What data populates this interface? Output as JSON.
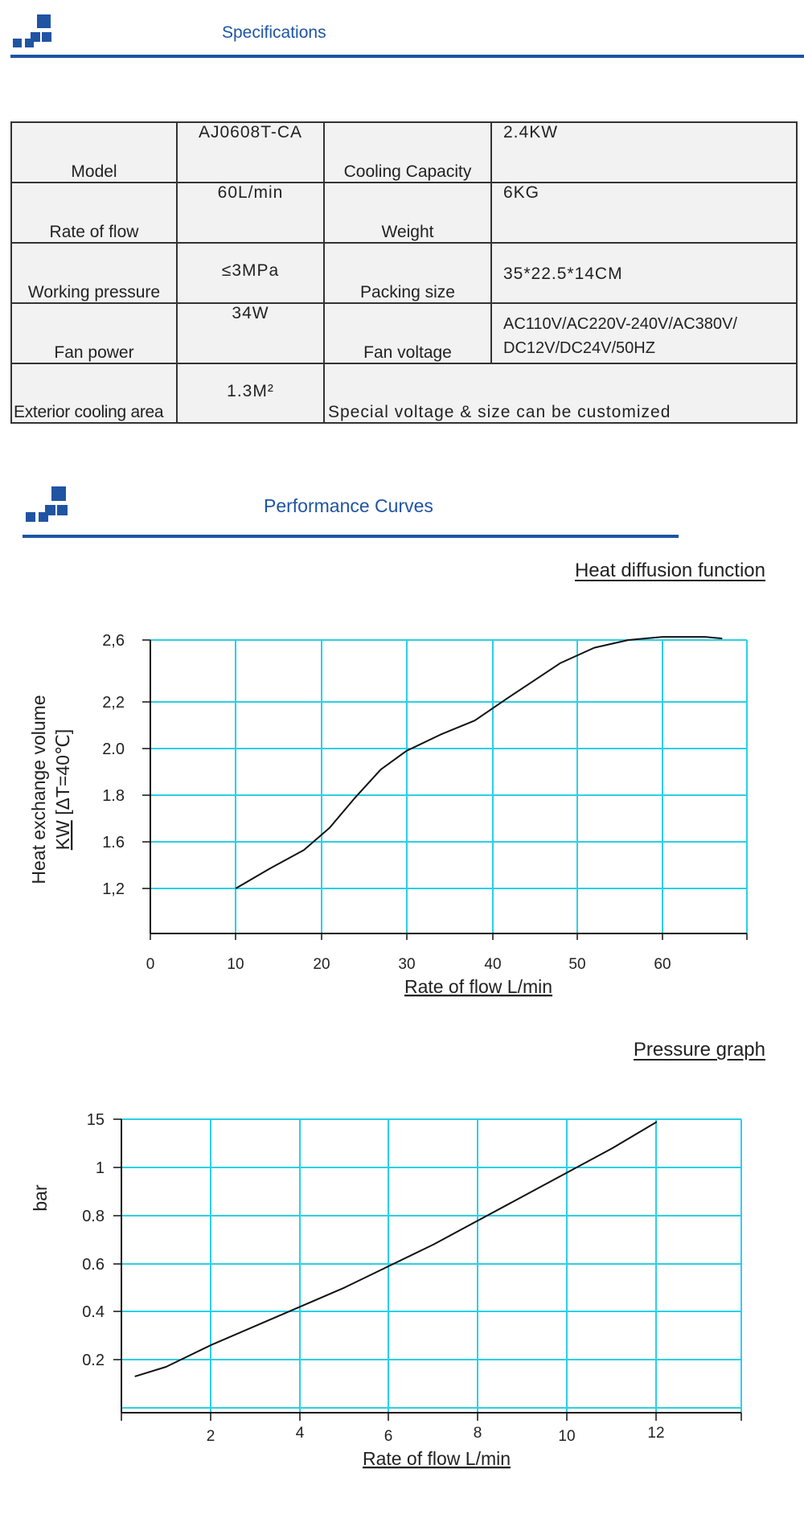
{
  "specifications_header": {
    "title": "Specifications"
  },
  "specifications": {
    "rows": [
      [
        {
          "label": "Model",
          "value": "AJ0608T-CA"
        },
        {
          "label": "Cooling Capacity",
          "value": "2.4KW"
        }
      ],
      [
        {
          "label": "Rate of flow",
          "value": "60L/min"
        },
        {
          "label": "Weight",
          "value": "6KG"
        }
      ],
      [
        {
          "label": "Working pressure",
          "value": "≤3MPa"
        },
        {
          "label": "Packing size",
          "value": "35*22.5*14CM"
        }
      ],
      [
        {
          "label": "Fan power",
          "value": "34W"
        },
        {
          "label": "Fan voltage",
          "value_lines": [
            "AC110V/AC220V-240V/AC380V/",
            "DC12V/DC24V/50HZ"
          ]
        }
      ]
    ],
    "last_row": {
      "label": "Exterior cooling area",
      "value": "1.3M²",
      "note": "Special voltage & size can be customized"
    }
  },
  "performance_header": {
    "title": "Performance Curves"
  },
  "colors": {
    "brand_blue": "#1f54a3",
    "grid_cyan": "#2ad0e6",
    "table_bg": "#f2f2f2"
  },
  "chart_data": [
    {
      "type": "line",
      "title": "Heat diffusion function",
      "xlabel": "Rate of flow L/min",
      "ylabel_lines": [
        "Heat exchange volume",
        "KW [ΔT=40℃]"
      ],
      "ylabel_underlined_part": "KW",
      "x_ticks": [
        "0",
        "10",
        "20",
        "30",
        "40",
        "50",
        "60"
      ],
      "y_ticks": [
        "2,6",
        "2,2",
        "2.0",
        "1.8",
        "1.6",
        "1,2"
      ],
      "grid": true,
      "series": [
        {
          "x": [
            10,
            14,
            18,
            21,
            24,
            27,
            30,
            34,
            38,
            40,
            42,
            45,
            48,
            52,
            56,
            60,
            63,
            65,
            67
          ],
          "y": [
            1.2,
            1.37,
            1.53,
            1.66,
            1.79,
            1.91,
            1.99,
            2.06,
            2.12,
            2.17,
            2.23,
            2.34,
            2.45,
            2.55,
            2.6,
            2.62,
            2.62,
            2.62,
            2.61
          ]
        }
      ]
    },
    {
      "type": "line",
      "title": "Pressure graph",
      "xlabel": "Rate of flow L/min",
      "ylabel": "bar",
      "x_ticks": [
        "2",
        "4",
        "6",
        "8",
        "10",
        "12"
      ],
      "y_ticks": [
        "15",
        "1",
        "0.8",
        "0.6",
        "0.4",
        "0.2"
      ],
      "grid": true,
      "series": [
        {
          "x": [
            0.3,
            1,
            2,
            3,
            4,
            5,
            6,
            7,
            8,
            9,
            10,
            11,
            12
          ],
          "y": [
            0.13,
            0.17,
            0.26,
            0.34,
            0.42,
            0.5,
            0.59,
            0.68,
            0.78,
            0.88,
            0.98,
            1.08,
            1.19
          ]
        }
      ]
    }
  ]
}
